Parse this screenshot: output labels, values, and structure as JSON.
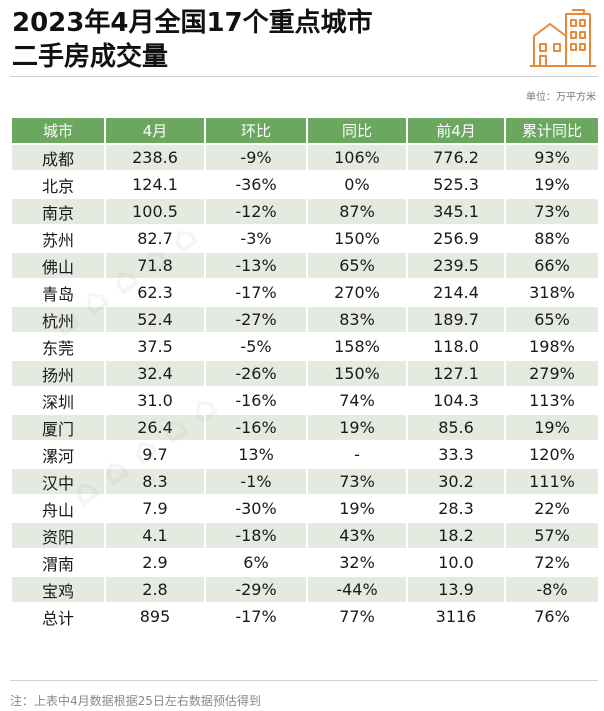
{
  "title": {
    "line1": "2023年4月全国17个重点城市",
    "line2": "二手房成交量"
  },
  "unit": "单位：万平方米",
  "table": {
    "headers": [
      "城市",
      "4月",
      "环比",
      "同比",
      "前4月",
      "累计同比"
    ],
    "rows": [
      [
        "成都",
        "238.6",
        "-9%",
        "106%",
        "776.2",
        "93%"
      ],
      [
        "北京",
        "124.1",
        "-36%",
        "0%",
        "525.3",
        "19%"
      ],
      [
        "南京",
        "100.5",
        "-12%",
        "87%",
        "345.1",
        "73%"
      ],
      [
        "苏州",
        "82.7",
        "-3%",
        "150%",
        "256.9",
        "88%"
      ],
      [
        "佛山",
        "71.8",
        "-13%",
        "65%",
        "239.5",
        "66%"
      ],
      [
        "青岛",
        "62.3",
        "-17%",
        "270%",
        "214.4",
        "318%"
      ],
      [
        "杭州",
        "52.4",
        "-27%",
        "83%",
        "189.7",
        "65%"
      ],
      [
        "东莞",
        "37.5",
        "-5%",
        "158%",
        "118.0",
        "198%"
      ],
      [
        "扬州",
        "32.4",
        "-26%",
        "150%",
        "127.1",
        "279%"
      ],
      [
        "深圳",
        "31.0",
        "-16%",
        "74%",
        "104.3",
        "113%"
      ],
      [
        "厦门",
        "26.4",
        "-16%",
        "19%",
        "85.6",
        "19%"
      ],
      [
        "漯河",
        "9.7",
        "13%",
        "-",
        "33.3",
        "120%"
      ],
      [
        "汉中",
        "8.3",
        "-1%",
        "73%",
        "30.2",
        "111%"
      ],
      [
        "舟山",
        "7.9",
        "-30%",
        "19%",
        "28.3",
        "22%"
      ],
      [
        "资阳",
        "4.1",
        "-18%",
        "43%",
        "18.2",
        "57%"
      ],
      [
        "渭南",
        "2.9",
        "6%",
        "32%",
        "10.0",
        "72%"
      ],
      [
        "宝鸡",
        "2.8",
        "-29%",
        "-44%",
        "13.9",
        "-8%"
      ],
      [
        "总计",
        "895",
        "-17%",
        "77%",
        "3116",
        "76%"
      ]
    ]
  },
  "note": "注：上表中4月数据根据25日左右数据预估得到",
  "colors": {
    "header_bg": "#6ba75f",
    "row_alt_bg": "#e4eadf",
    "logo_orange": "#e8893a"
  },
  "icons": {
    "logo": "city-buildings-icon"
  }
}
